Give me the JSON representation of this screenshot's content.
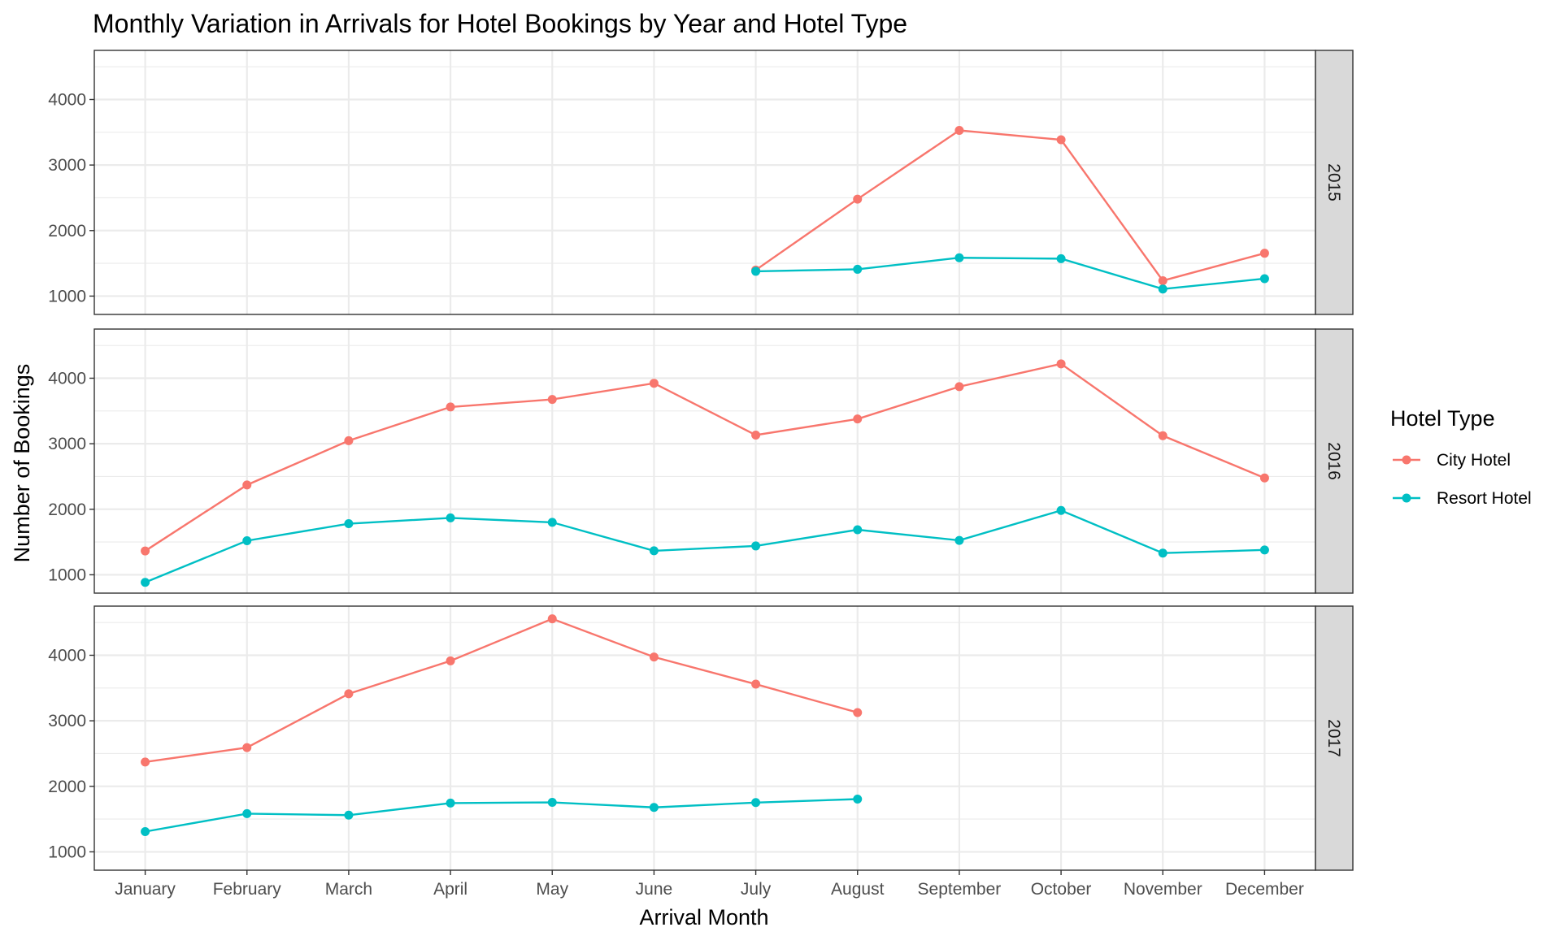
{
  "chart_data": {
    "type": "line",
    "title": "Monthly Variation in Arrivals for Hotel Bookings by Year and Hotel Type",
    "xlabel": "Arrival Month",
    "ylabel": "Number of Bookings",
    "legend_title": "Hotel Type",
    "legend_position": "right",
    "grid": true,
    "categories": [
      "January",
      "February",
      "March",
      "April",
      "May",
      "June",
      "July",
      "August",
      "September",
      "October",
      "November",
      "December"
    ],
    "ylim": [
      720,
      4750
    ],
    "yticks": [
      1000,
      2000,
      3000,
      4000
    ],
    "series_colors": {
      "City Hotel": "#f8766d",
      "Resort Hotel": "#00bfc4"
    },
    "series_names": [
      "City Hotel",
      "Resort Hotel"
    ],
    "facets": [
      {
        "label": "2015",
        "series": [
          {
            "name": "City Hotel",
            "values": [
              null,
              null,
              null,
              null,
              null,
              null,
              1398,
              2480,
              3529,
              3386,
              1235,
              1654
            ]
          },
          {
            "name": "Resort Hotel",
            "values": [
              null,
              null,
              null,
              null,
              null,
              null,
              1378,
              1409,
              1585,
              1571,
              1108,
              1266
            ]
          }
        ]
      },
      {
        "label": "2016",
        "series": [
          {
            "name": "City Hotel",
            "values": [
              1364,
              2371,
              3046,
              3561,
              3676,
              3923,
              3132,
              3378,
              3871,
              4219,
              3122,
              2478
            ]
          },
          {
            "name": "Resort Hotel",
            "values": [
              884,
              1520,
              1780,
              1868,
              1800,
              1366,
              1440,
              1687,
              1525,
              1982,
              1331,
              1379
            ]
          }
        ]
      },
      {
        "label": "2017",
        "series": [
          {
            "name": "City Hotel",
            "values": [
              2371,
              2591,
              3412,
              3915,
              4556,
              3973,
              3559,
              3126,
              null,
              null,
              null,
              null
            ]
          },
          {
            "name": "Resort Hotel",
            "values": [
              1309,
              1583,
              1560,
              1744,
              1755,
              1678,
              1752,
              1805,
              null,
              null,
              null,
              null
            ]
          }
        ]
      }
    ]
  }
}
